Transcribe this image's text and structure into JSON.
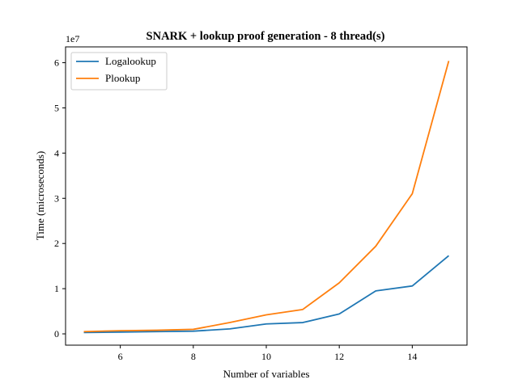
{
  "chart_data": {
    "type": "line",
    "title": "SNARK + lookup proof generation - 8 thread(s)",
    "xlabel": "Number of variables",
    "ylabel": "Time (microseconds)",
    "y_multiplier_label": "1e7",
    "x": [
      5,
      6,
      7,
      8,
      9,
      10,
      11,
      12,
      13,
      14,
      15
    ],
    "xlim": [
      4.5,
      15.5
    ],
    "ylim": [
      -0.25,
      6.35
    ],
    "x_ticks": [
      6,
      8,
      10,
      12,
      14
    ],
    "y_ticks": [
      0,
      1,
      2,
      3,
      4,
      5,
      6
    ],
    "y_units_note": "values in units of 1e7 microseconds",
    "grid": false,
    "legend_position": "top-left",
    "series": [
      {
        "name": "Logalookup",
        "color": "#1f77b4",
        "values": [
          0.03,
          0.04,
          0.05,
          0.06,
          0.11,
          0.22,
          0.25,
          0.44,
          0.95,
          1.06,
          1.73
        ]
      },
      {
        "name": "Plookup",
        "color": "#ff7f0e",
        "values": [
          0.05,
          0.07,
          0.08,
          0.1,
          0.25,
          0.42,
          0.54,
          1.13,
          1.94,
          3.1,
          6.04
        ]
      }
    ]
  }
}
